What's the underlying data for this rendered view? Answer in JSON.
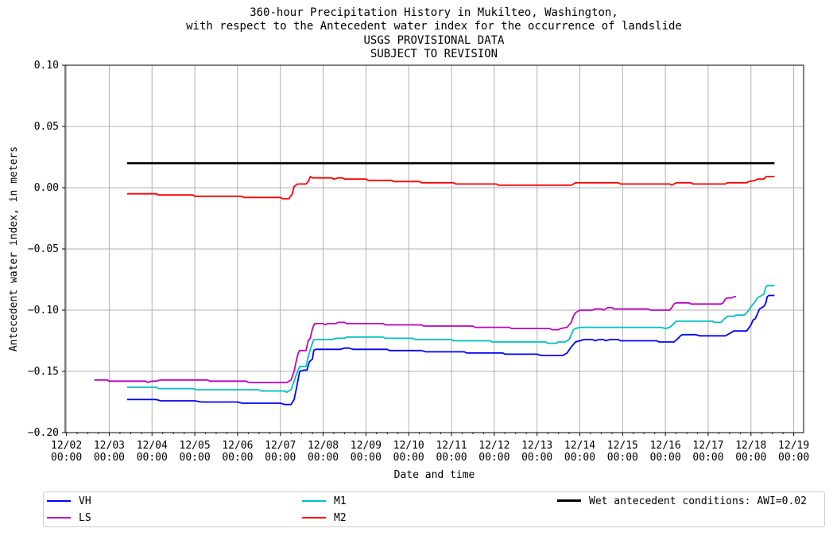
{
  "chart_data": {
    "type": "line",
    "title_lines": [
      "360-hour Precipitation History in Mukilteo, Washington,",
      "with respect to the Antecedent water index for the occurrence of landslide",
      "USGS PROVISIONAL DATA",
      "SUBJECT TO REVISION"
    ],
    "xlabel": "Date and time",
    "ylabel": "Antecedent water index, in meters",
    "xlim": [
      -0.03,
      17.23
    ],
    "ylim": [
      -0.2,
      0.1
    ],
    "x_unit": "days since 12/02 00:00",
    "x_ticks": [
      {
        "value": 0,
        "label": "12/02\n00:00"
      },
      {
        "value": 1,
        "label": "12/03\n00:00"
      },
      {
        "value": 2,
        "label": "12/04\n00:00"
      },
      {
        "value": 3,
        "label": "12/05\n00:00"
      },
      {
        "value": 4,
        "label": "12/06\n00:00"
      },
      {
        "value": 5,
        "label": "12/07\n00:00"
      },
      {
        "value": 6,
        "label": "12/08\n00:00"
      },
      {
        "value": 7,
        "label": "12/09\n00:00"
      },
      {
        "value": 8,
        "label": "12/10\n00:00"
      },
      {
        "value": 9,
        "label": "12/11\n00:00"
      },
      {
        "value": 10,
        "label": "12/12\n00:00"
      },
      {
        "value": 11,
        "label": "12/13\n00:00"
      },
      {
        "value": 12,
        "label": "12/14\n00:00"
      },
      {
        "value": 13,
        "label": "12/15\n00:00"
      },
      {
        "value": 14,
        "label": "12/16\n00:00"
      },
      {
        "value": 15,
        "label": "12/17\n00:00"
      },
      {
        "value": 16,
        "label": "12/18\n00:00"
      },
      {
        "value": 17,
        "label": "12/19\n00:00"
      }
    ],
    "y_ticks": [
      -0.2,
      -0.15,
      -0.1,
      -0.05,
      0.0,
      0.05,
      0.1
    ],
    "y_tick_labels": [
      "−0.20",
      "−0.15",
      "−0.10",
      "−0.05",
      "0.00",
      "0.05",
      "0.10"
    ],
    "grid": true,
    "legend_position": "below",
    "series": [
      {
        "name": "VH",
        "color": "#0000ff",
        "points": [
          [
            1.42,
            -0.173
          ],
          [
            2.1,
            -0.173
          ],
          [
            2.2,
            -0.174
          ],
          [
            3.0,
            -0.174
          ],
          [
            3.15,
            -0.175
          ],
          [
            4.0,
            -0.175
          ],
          [
            4.1,
            -0.176
          ],
          [
            5.0,
            -0.176
          ],
          [
            5.1,
            -0.177
          ],
          [
            5.25,
            -0.177
          ],
          [
            5.32,
            -0.173
          ],
          [
            5.38,
            -0.163
          ],
          [
            5.45,
            -0.15
          ],
          [
            5.55,
            -0.149
          ],
          [
            5.62,
            -0.149
          ],
          [
            5.68,
            -0.142
          ],
          [
            5.75,
            -0.14
          ],
          [
            5.78,
            -0.133
          ],
          [
            5.82,
            -0.132
          ],
          [
            6.4,
            -0.132
          ],
          [
            6.5,
            -0.131
          ],
          [
            6.6,
            -0.131
          ],
          [
            6.7,
            -0.132
          ],
          [
            7.5,
            -0.132
          ],
          [
            7.55,
            -0.133
          ],
          [
            8.3,
            -0.133
          ],
          [
            8.4,
            -0.134
          ],
          [
            9.3,
            -0.134
          ],
          [
            9.35,
            -0.135
          ],
          [
            10.2,
            -0.135
          ],
          [
            10.25,
            -0.136
          ],
          [
            11.0,
            -0.136
          ],
          [
            11.1,
            -0.137
          ],
          [
            11.6,
            -0.137
          ],
          [
            11.7,
            -0.135
          ],
          [
            11.8,
            -0.13
          ],
          [
            11.9,
            -0.126
          ],
          [
            12.0,
            -0.125
          ],
          [
            12.1,
            -0.124
          ],
          [
            12.3,
            -0.124
          ],
          [
            12.35,
            -0.125
          ],
          [
            12.45,
            -0.124
          ],
          [
            12.55,
            -0.124
          ],
          [
            12.6,
            -0.125
          ],
          [
            12.7,
            -0.124
          ],
          [
            12.9,
            -0.124
          ],
          [
            12.95,
            -0.125
          ],
          [
            13.8,
            -0.125
          ],
          [
            13.85,
            -0.126
          ],
          [
            14.2,
            -0.126
          ],
          [
            14.3,
            -0.123
          ],
          [
            14.35,
            -0.121
          ],
          [
            14.4,
            -0.12
          ],
          [
            14.7,
            -0.12
          ],
          [
            14.8,
            -0.121
          ],
          [
            15.4,
            -0.121
          ],
          [
            15.5,
            -0.119
          ],
          [
            15.6,
            -0.117
          ],
          [
            15.9,
            -0.117
          ],
          [
            16.0,
            -0.112
          ],
          [
            16.05,
            -0.108
          ],
          [
            16.1,
            -0.107
          ],
          [
            16.15,
            -0.103
          ],
          [
            16.2,
            -0.099
          ],
          [
            16.3,
            -0.097
          ],
          [
            16.35,
            -0.094
          ],
          [
            16.38,
            -0.089
          ],
          [
            16.42,
            -0.088
          ],
          [
            16.55,
            -0.088
          ]
        ]
      },
      {
        "name": "LS",
        "color": "#bf00bf",
        "points": [
          [
            0.65,
            -0.157
          ],
          [
            0.95,
            -0.157
          ],
          [
            1.0,
            -0.158
          ],
          [
            1.85,
            -0.158
          ],
          [
            1.9,
            -0.159
          ],
          [
            2.0,
            -0.158
          ],
          [
            2.1,
            -0.158
          ],
          [
            2.2,
            -0.157
          ],
          [
            3.3,
            -0.157
          ],
          [
            3.35,
            -0.158
          ],
          [
            4.2,
            -0.158
          ],
          [
            4.25,
            -0.159
          ],
          [
            5.15,
            -0.159
          ],
          [
            5.25,
            -0.157
          ],
          [
            5.32,
            -0.15
          ],
          [
            5.38,
            -0.14
          ],
          [
            5.42,
            -0.135
          ],
          [
            5.45,
            -0.133
          ],
          [
            5.6,
            -0.133
          ],
          [
            5.65,
            -0.125
          ],
          [
            5.7,
            -0.123
          ],
          [
            5.75,
            -0.115
          ],
          [
            5.8,
            -0.111
          ],
          [
            6.0,
            -0.111
          ],
          [
            6.05,
            -0.112
          ],
          [
            6.1,
            -0.111
          ],
          [
            6.3,
            -0.111
          ],
          [
            6.35,
            -0.11
          ],
          [
            6.5,
            -0.11
          ],
          [
            6.55,
            -0.111
          ],
          [
            7.4,
            -0.111
          ],
          [
            7.45,
            -0.112
          ],
          [
            8.3,
            -0.112
          ],
          [
            8.35,
            -0.113
          ],
          [
            9.5,
            -0.113
          ],
          [
            9.55,
            -0.114
          ],
          [
            10.35,
            -0.114
          ],
          [
            10.4,
            -0.115
          ],
          [
            11.3,
            -0.115
          ],
          [
            11.35,
            -0.116
          ],
          [
            11.5,
            -0.116
          ],
          [
            11.55,
            -0.115
          ],
          [
            11.7,
            -0.114
          ],
          [
            11.8,
            -0.11
          ],
          [
            11.85,
            -0.105
          ],
          [
            11.9,
            -0.102
          ],
          [
            12.0,
            -0.1
          ],
          [
            12.3,
            -0.1
          ],
          [
            12.35,
            -0.099
          ],
          [
            12.5,
            -0.099
          ],
          [
            12.55,
            -0.1
          ],
          [
            12.6,
            -0.099
          ],
          [
            12.65,
            -0.098
          ],
          [
            12.75,
            -0.098
          ],
          [
            12.8,
            -0.099
          ],
          [
            13.6,
            -0.099
          ],
          [
            13.65,
            -0.1
          ],
          [
            14.1,
            -0.1
          ],
          [
            14.15,
            -0.098
          ],
          [
            14.2,
            -0.095
          ],
          [
            14.25,
            -0.094
          ],
          [
            14.55,
            -0.094
          ],
          [
            14.6,
            -0.095
          ],
          [
            15.3,
            -0.095
          ],
          [
            15.35,
            -0.094
          ],
          [
            15.4,
            -0.091
          ],
          [
            15.45,
            -0.09
          ],
          [
            15.55,
            -0.09
          ],
          [
            15.6,
            -0.089
          ],
          [
            15.65,
            -0.089
          ]
        ]
      },
      {
        "name": "M1",
        "color": "#00bfbf",
        "points": [
          [
            1.42,
            -0.163
          ],
          [
            2.1,
            -0.163
          ],
          [
            2.15,
            -0.164
          ],
          [
            2.95,
            -0.164
          ],
          [
            3.05,
            -0.165
          ],
          [
            4.5,
            -0.165
          ],
          [
            4.55,
            -0.166
          ],
          [
            5.1,
            -0.166
          ],
          [
            5.15,
            -0.167
          ],
          [
            5.25,
            -0.165
          ],
          [
            5.3,
            -0.16
          ],
          [
            5.38,
            -0.152
          ],
          [
            5.45,
            -0.146
          ],
          [
            5.6,
            -0.146
          ],
          [
            5.65,
            -0.138
          ],
          [
            5.72,
            -0.13
          ],
          [
            5.78,
            -0.124
          ],
          [
            6.2,
            -0.124
          ],
          [
            6.3,
            -0.123
          ],
          [
            6.5,
            -0.123
          ],
          [
            6.55,
            -0.122
          ],
          [
            7.4,
            -0.122
          ],
          [
            7.45,
            -0.123
          ],
          [
            8.1,
            -0.123
          ],
          [
            8.15,
            -0.124
          ],
          [
            9.0,
            -0.124
          ],
          [
            9.05,
            -0.125
          ],
          [
            9.9,
            -0.125
          ],
          [
            9.95,
            -0.126
          ],
          [
            11.2,
            -0.126
          ],
          [
            11.25,
            -0.127
          ],
          [
            11.45,
            -0.127
          ],
          [
            11.5,
            -0.126
          ],
          [
            11.65,
            -0.126
          ],
          [
            11.75,
            -0.124
          ],
          [
            11.8,
            -0.12
          ],
          [
            11.85,
            -0.116
          ],
          [
            11.9,
            -0.115
          ],
          [
            12.0,
            -0.114
          ],
          [
            13.9,
            -0.114
          ],
          [
            14.0,
            -0.115
          ],
          [
            14.1,
            -0.114
          ],
          [
            14.2,
            -0.111
          ],
          [
            14.25,
            -0.109
          ],
          [
            15.1,
            -0.109
          ],
          [
            15.15,
            -0.11
          ],
          [
            15.3,
            -0.11
          ],
          [
            15.35,
            -0.108
          ],
          [
            15.45,
            -0.105
          ],
          [
            15.6,
            -0.105
          ],
          [
            15.65,
            -0.104
          ],
          [
            15.85,
            -0.104
          ],
          [
            15.9,
            -0.102
          ],
          [
            15.95,
            -0.1
          ],
          [
            16.0,
            -0.097
          ],
          [
            16.1,
            -0.093
          ],
          [
            16.15,
            -0.09
          ],
          [
            16.25,
            -0.088
          ],
          [
            16.3,
            -0.087
          ],
          [
            16.35,
            -0.081
          ],
          [
            16.38,
            -0.08
          ],
          [
            16.55,
            -0.08
          ]
        ]
      },
      {
        "name": "M2",
        "color": "#ff0000",
        "points": [
          [
            1.42,
            -0.005
          ],
          [
            2.1,
            -0.005
          ],
          [
            2.15,
            -0.006
          ],
          [
            2.95,
            -0.006
          ],
          [
            3.0,
            -0.007
          ],
          [
            4.1,
            -0.007
          ],
          [
            4.15,
            -0.008
          ],
          [
            5.0,
            -0.008
          ],
          [
            5.05,
            -0.009
          ],
          [
            5.2,
            -0.009
          ],
          [
            5.28,
            -0.005
          ],
          [
            5.32,
            0.001
          ],
          [
            5.4,
            0.003
          ],
          [
            5.6,
            0.003
          ],
          [
            5.65,
            0.005
          ],
          [
            5.7,
            0.009
          ],
          [
            5.75,
            0.008
          ],
          [
            6.2,
            0.008
          ],
          [
            6.25,
            0.007
          ],
          [
            6.35,
            0.008
          ],
          [
            6.45,
            0.008
          ],
          [
            6.5,
            0.007
          ],
          [
            7.0,
            0.007
          ],
          [
            7.05,
            0.006
          ],
          [
            7.6,
            0.006
          ],
          [
            7.65,
            0.005
          ],
          [
            8.25,
            0.005
          ],
          [
            8.3,
            0.004
          ],
          [
            9.05,
            0.004
          ],
          [
            9.1,
            0.003
          ],
          [
            10.05,
            0.003
          ],
          [
            10.1,
            0.002
          ],
          [
            11.8,
            0.002
          ],
          [
            11.85,
            0.003
          ],
          [
            11.9,
            0.004
          ],
          [
            12.9,
            0.004
          ],
          [
            12.95,
            0.003
          ],
          [
            14.1,
            0.003
          ],
          [
            14.15,
            0.002
          ],
          [
            14.2,
            0.003
          ],
          [
            14.25,
            0.004
          ],
          [
            14.6,
            0.004
          ],
          [
            14.65,
            0.003
          ],
          [
            15.4,
            0.003
          ],
          [
            15.45,
            0.004
          ],
          [
            15.9,
            0.004
          ],
          [
            15.95,
            0.005
          ],
          [
            16.1,
            0.006
          ],
          [
            16.15,
            0.007
          ],
          [
            16.3,
            0.007
          ],
          [
            16.35,
            0.009
          ],
          [
            16.55,
            0.009
          ]
        ]
      },
      {
        "name": "Wet antecedent conditions: AWI=0.02",
        "color": "#000000",
        "points": [
          [
            1.42,
            0.02
          ],
          [
            16.55,
            0.02
          ]
        ]
      }
    ]
  },
  "legend": {
    "items": [
      {
        "label": "VH",
        "color": "#0000ff"
      },
      {
        "label": "LS",
        "color": "#bf00bf"
      },
      {
        "label": "M1",
        "color": "#00bfbf"
      },
      {
        "label": "M2",
        "color": "#ff0000"
      },
      {
        "label": "Wet antecedent conditions: AWI=0.02",
        "color": "#000000"
      }
    ]
  }
}
